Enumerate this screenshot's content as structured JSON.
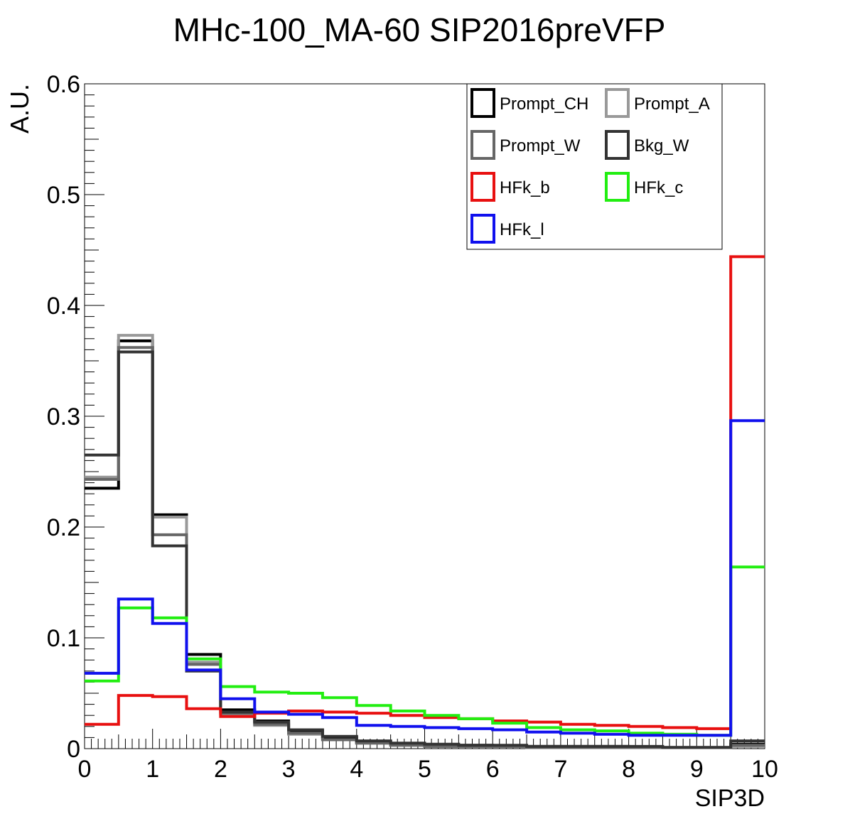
{
  "chart_data": {
    "type": "line",
    "title": "MHc-100_MA-60  SIP2016preVFP",
    "xlabel": "SIP3D",
    "ylabel": "A.U.",
    "xlim": [
      0,
      10
    ],
    "ylim": [
      0,
      0.6
    ],
    "grid": false,
    "legend_position": "top-right",
    "bin_edges": [
      0,
      0.5,
      1,
      1.5,
      2,
      2.5,
      3,
      3.5,
      4,
      4.5,
      5,
      5.5,
      6,
      6.5,
      7,
      7.5,
      8,
      8.5,
      9,
      9.5,
      10
    ],
    "x_tick_labels": [
      "0",
      "1",
      "2",
      "3",
      "4",
      "5",
      "6",
      "7",
      "8",
      "9",
      "10"
    ],
    "y_tick_labels": [
      "0",
      "0.1",
      "0.2",
      "0.3",
      "0.4",
      "0.5",
      "0.6"
    ],
    "series": [
      {
        "name": "Prompt_CH",
        "color": "#000000",
        "values": [
          0.235,
          0.368,
          0.211,
          0.085,
          0.035,
          0.025,
          0.016,
          0.01,
          0.006,
          0.004,
          0.003,
          0.003,
          0.002,
          0.002,
          0.002,
          0.002,
          0.001,
          0.001,
          0.001,
          0.004
        ]
      },
      {
        "name": "Prompt_A",
        "color": "#999999",
        "values": [
          0.245,
          0.373,
          0.209,
          0.078,
          0.031,
          0.021,
          0.013,
          0.008,
          0.005,
          0.003,
          0.002,
          0.002,
          0.002,
          0.001,
          0.001,
          0.001,
          0.001,
          0.001,
          0.001,
          0.002
        ]
      },
      {
        "name": "Prompt_W",
        "color": "#666666",
        "values": [
          0.243,
          0.362,
          0.193,
          0.076,
          0.032,
          0.022,
          0.014,
          0.008,
          0.005,
          0.003,
          0.002,
          0.002,
          0.002,
          0.001,
          0.001,
          0.001,
          0.001,
          0.001,
          0.001,
          0.003
        ]
      },
      {
        "name": "Bkg_W",
        "color": "#333333",
        "values": [
          0.265,
          0.358,
          0.183,
          0.07,
          0.033,
          0.024,
          0.017,
          0.011,
          0.007,
          0.005,
          0.004,
          0.003,
          0.003,
          0.002,
          0.002,
          0.002,
          0.002,
          0.001,
          0.001,
          0.007
        ]
      },
      {
        "name": "HFk_b",
        "color": "#e81010",
        "values": [
          0.022,
          0.048,
          0.047,
          0.036,
          0.029,
          0.032,
          0.034,
          0.033,
          0.032,
          0.03,
          0.028,
          0.027,
          0.025,
          0.024,
          0.022,
          0.021,
          0.02,
          0.019,
          0.018,
          0.444
        ]
      },
      {
        "name": "HFk_c",
        "color": "#22ee11",
        "values": [
          0.061,
          0.127,
          0.118,
          0.081,
          0.056,
          0.051,
          0.05,
          0.046,
          0.039,
          0.034,
          0.03,
          0.027,
          0.023,
          0.019,
          0.017,
          0.016,
          0.014,
          0.013,
          0.012,
          0.164
        ]
      },
      {
        "name": "HFk_l",
        "color": "#1010ee",
        "values": [
          0.068,
          0.135,
          0.113,
          0.071,
          0.045,
          0.033,
          0.031,
          0.028,
          0.021,
          0.02,
          0.019,
          0.018,
          0.017,
          0.015,
          0.014,
          0.013,
          0.012,
          0.012,
          0.012,
          0.296
        ]
      }
    ]
  }
}
